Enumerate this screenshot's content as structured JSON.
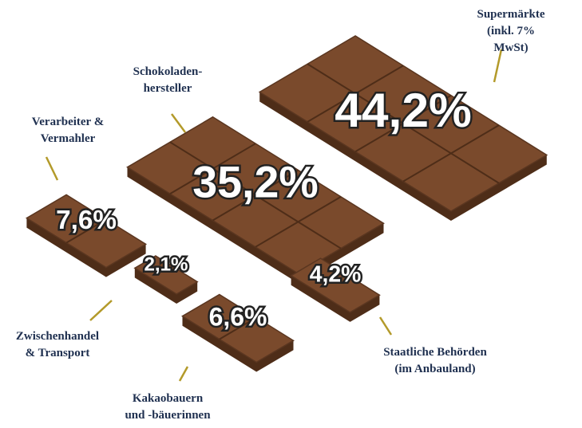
{
  "chart_data": {
    "type": "pictorial",
    "categories": [
      "Supermärkte\n(inkl. 7% MwSt)",
      "Schokoladen-\nhersteller",
      "Verarbeiter &\nVermahler",
      "Zwischenhandel\n& Transport",
      "Kakaobauern\nund -bäuerinnen",
      "Staatliche Behörden\n(im Anbauland)"
    ],
    "values": [
      44.2,
      35.2,
      7.6,
      2.1,
      6.6,
      4.2
    ],
    "value_labels": [
      "44,2%",
      "35,2%",
      "7,6%",
      "2,1%",
      "6,6%",
      "4,2%"
    ],
    "color": "#7a4a2c"
  }
}
